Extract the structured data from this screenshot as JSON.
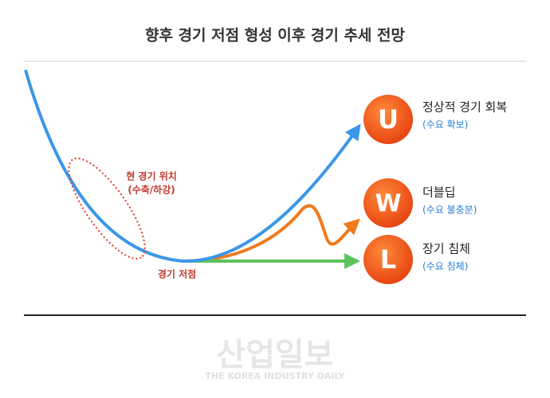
{
  "title": "향후 경기 저점 형성 이후 경기 추세 전망",
  "annotations": {
    "current_position": "현 경기 위치",
    "current_position_sub": "(수축/하강)",
    "trough": "경기 저점"
  },
  "scenarios": [
    {
      "letter": "U",
      "label": "정상적 경기 회복",
      "sublabel": "(수요 확보)"
    },
    {
      "letter": "W",
      "label": "더블딥",
      "sublabel": "(수요 불충분)"
    },
    {
      "letter": "L",
      "label": "장기 침체",
      "sublabel": "(수요 침체)"
    }
  ],
  "watermark": {
    "name": "산업일보",
    "subtitle": "THE KOREA INDUSTRY DAILY"
  }
}
